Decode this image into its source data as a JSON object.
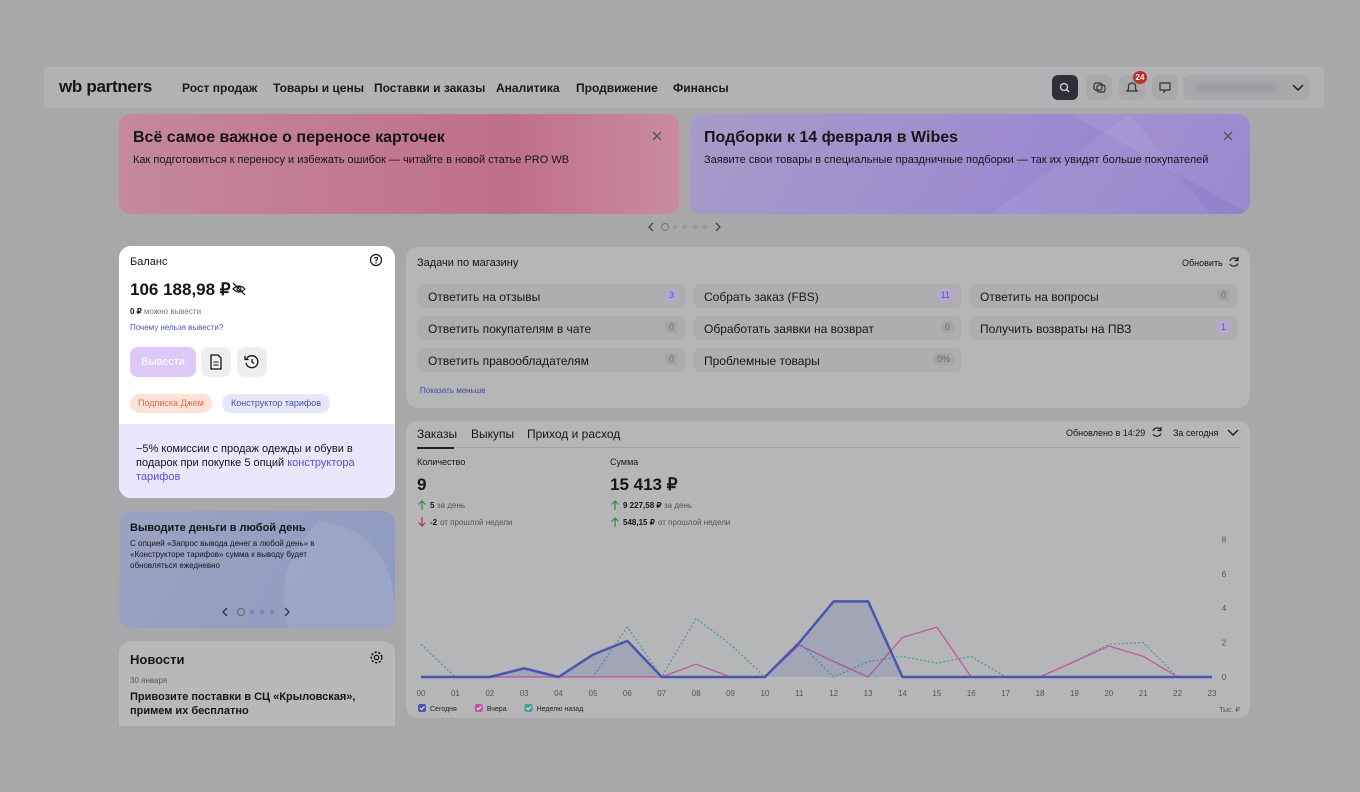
{
  "header": {
    "logo": "wb partners",
    "nav": [
      "Рост продаж",
      "Товары и цены",
      "Поставки и заказы",
      "Аналитика",
      "Продвижение",
      "Финансы"
    ],
    "notifications": 24
  },
  "banners": [
    {
      "title": "Всё самое важное о переносе карточек",
      "text": "Как подготовиться к переносу и избежать ошибок — читайте в новой статье PRO WB"
    },
    {
      "title": "Подборки к 14 февраля в Wibes",
      "text": "Заявите свои товары в специальные праздничные подборки — так их увидят больше покупателей"
    }
  ],
  "balance": {
    "title": "Баланс",
    "amount": "106 188,98 ₽",
    "available_amount": "0 ₽",
    "available_label": "можно вывести",
    "link": "Почему нельзя вывести?",
    "button": "Вывести",
    "tags": [
      "Подписка Джем",
      "Конструктор тарифов"
    ],
    "offer_text": "−5% комиссии с продаж одежды и обуви в подарок при покупке 5 опций ",
    "offer_link": "конструктора тарифов"
  },
  "promo": {
    "title": "Выводите деньги в любой день",
    "text": "С опцией «Запрос вывода денег в любой день» в «Конструкторе тарифов» сумма к выводу будет обновляться ежедневно"
  },
  "news": {
    "title": "Новости",
    "date": "30 января",
    "headline": "Привозите поставки в СЦ «Крыловская», примем их бесплатно"
  },
  "tasks": {
    "title": "Задачи по магазину",
    "refresh": "Обновить",
    "toggle": "Показать меньше",
    "items": [
      {
        "label": "Ответить на отзывы",
        "count": 3
      },
      {
        "label": "Собрать заказ (FBS)",
        "count": 11
      },
      {
        "label": "Ответить на вопросы",
        "count": 0
      },
      {
        "label": "Ответить покупателям в чате",
        "count": 0
      },
      {
        "label": "Обработать заявки на возврат",
        "count": 0
      },
      {
        "label": "Получить возвраты на ПВЗ",
        "count": 1
      },
      {
        "label": "Ответить правообладателям",
        "count": 0
      },
      {
        "label": "Проблемные товары",
        "count": "0%"
      }
    ]
  },
  "stats": {
    "tabs": [
      "Заказы",
      "Выкупы",
      "Приход и расход"
    ],
    "updated": "Обновлено в 14:29",
    "period": "За сегодня",
    "metrics": [
      {
        "label": "Количество",
        "value": "9",
        "day": "5",
        "day_label": "за день",
        "week": "-2",
        "week_label": "от прошлой недели"
      },
      {
        "label": "Сумма",
        "value": "15 413 ₽",
        "day": "9 227,58 ₽",
        "day_label": "за день",
        "week": "548,15 ₽",
        "week_label": "от прошлой недели"
      }
    ]
  },
  "chart_data": {
    "type": "line",
    "categories": [
      "00",
      "01",
      "02",
      "03",
      "04",
      "05",
      "06",
      "07",
      "08",
      "09",
      "10",
      "11",
      "12",
      "13",
      "14",
      "15",
      "16",
      "17",
      "18",
      "19",
      "20",
      "21",
      "22",
      "23"
    ],
    "unit_label": "Тыс. ₽",
    "ylim": [
      0,
      8
    ],
    "yticks": [
      0,
      2,
      4,
      6,
      8
    ],
    "grid": false,
    "series": [
      {
        "name": "Сегодня",
        "color": "#4856b0",
        "style": "solid",
        "area": true,
        "values": [
          0,
          0,
          0,
          0.5,
          0,
          1.3,
          2.1,
          0,
          0,
          0,
          0,
          2,
          4.4,
          4.4,
          0,
          0,
          0,
          0,
          0,
          0,
          0,
          0,
          0,
          0
        ]
      },
      {
        "name": "Вчера",
        "color": "#c058a6",
        "style": "solid",
        "area": false,
        "values": [
          0,
          0,
          0,
          0,
          0,
          0,
          0,
          0,
          0.75,
          0,
          0,
          1.85,
          0.9,
          0,
          2.3,
          2.9,
          0,
          0,
          0,
          0.9,
          1.8,
          1.2,
          0,
          0
        ]
      },
      {
        "name": "Неделю назад",
        "color": "#45a096",
        "style": "dotted",
        "area": false,
        "values": [
          1.9,
          0,
          0,
          0,
          0,
          0,
          2.9,
          0,
          3.4,
          1.9,
          0,
          2,
          0,
          0.9,
          1.2,
          0.8,
          1.2,
          0,
          0,
          0.9,
          1.9,
          2,
          0,
          0
        ]
      }
    ]
  }
}
